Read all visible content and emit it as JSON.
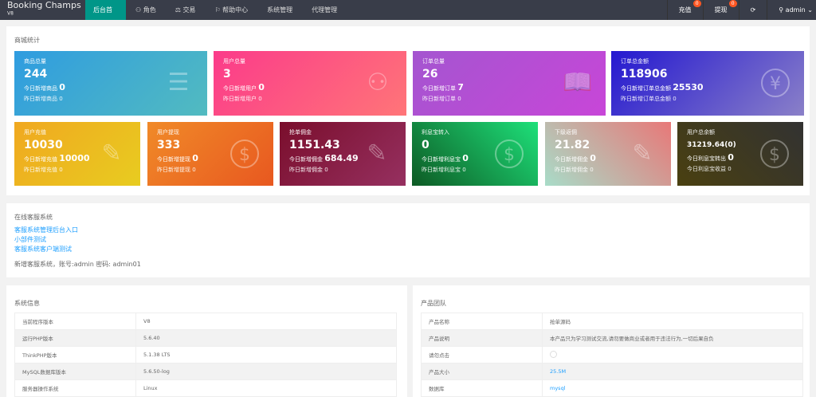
{
  "header": {
    "brand": "Booking Champs",
    "version": "V8",
    "nav": [
      "后台首页",
      "角色",
      "交易",
      "帮助中心",
      "系统管理",
      "代理管理"
    ],
    "right": {
      "recharge": "充值",
      "recharge_badge": "0",
      "withdraw": "提现",
      "withdraw_badge": "0",
      "user": "admin"
    }
  },
  "stats": {
    "title": "商城统计",
    "row1": [
      {
        "title": "商品总量",
        "value": "244",
        "today_label": "今日新增商品",
        "today": "0",
        "yesterday_label": "昨日新增商品",
        "yesterday": "0",
        "icon": "layers-icon"
      },
      {
        "title": "用户总量",
        "value": "3",
        "today_label": "今日新增用户",
        "today": "0",
        "yesterday_label": "昨日新增用户",
        "yesterday": "0",
        "icon": "users-icon"
      },
      {
        "title": "订单总量",
        "value": "26",
        "today_label": "今日新增订单",
        "today": "7",
        "yesterday_label": "昨日新增订单",
        "yesterday": "0",
        "icon": "book-icon"
      },
      {
        "title": "订单总金额",
        "value": "118906",
        "today_label": "今日新增订单总金额",
        "today": "25530",
        "yesterday_label": "昨日新增订单总金额",
        "yesterday": "0",
        "icon": "yen-icon"
      }
    ],
    "row2": [
      {
        "title": "用户充值",
        "value": "10030",
        "today_label": "今日新增充值",
        "today": "10000",
        "yesterday_label": "昨日新增充值",
        "yesterday": "0",
        "icon": "edit-icon"
      },
      {
        "title": "用户提现",
        "value": "333",
        "today_label": "今日新增提现",
        "today": "0",
        "yesterday_label": "昨日新增提现",
        "yesterday": "0",
        "icon": "dollar-icon"
      },
      {
        "title": "抢单佣金",
        "value": "1151.43",
        "today_label": "今日新增佣金",
        "today": "684.49",
        "yesterday_label": "昨日新增佣金",
        "yesterday": "0",
        "icon": "edit-icon"
      },
      {
        "title": "利息宝转入",
        "value": "0",
        "today_label": "今日新增利息宝",
        "today": "0",
        "yesterday_label": "昨日新增利息宝",
        "yesterday": "0",
        "icon": "dollar-icon"
      },
      {
        "title": "下级返佣",
        "value": "21.82",
        "today_label": "今日新增佣金",
        "today": "0",
        "yesterday_label": "昨日新增佣金",
        "yesterday": "0",
        "icon": "edit-icon"
      },
      {
        "title": "用户总余额",
        "value": "31219.64(0)",
        "today_label": "今日利息宝转出",
        "today": "0",
        "yesterday_label": "今日利息宝收益",
        "yesterday": "0",
        "icon": "dollar-icon"
      }
    ]
  },
  "service": {
    "title": "在线客服系统",
    "links": [
      "客服系统管理后台入口",
      "小部件测试",
      "客服系统客户端测试"
    ],
    "note": "新增客服系统，账号:admin 密码: admin01"
  },
  "sysinfo": {
    "title": "系统信息",
    "rows": [
      [
        "当前程序版本",
        "V8"
      ],
      [
        "运行PHP版本",
        "5.6.40"
      ],
      [
        "ThinkPHP版本",
        "5.1.38 LTS"
      ],
      [
        "MySQL数据库版本",
        "5.6.50-log"
      ],
      [
        "服务器操作系统",
        "Linux"
      ]
    ]
  },
  "team": {
    "title": "产品团队",
    "rows": [
      [
        "产品名称",
        "抢单源码"
      ],
      [
        "产品说明",
        "本产品只为学习测试交流,请勿要做商业或者用于违法行为,一切后果自负"
      ],
      [
        "请勿点击",
        ""
      ],
      [
        "产品大小",
        "25.5M"
      ],
      [
        "数据库",
        "mysql"
      ]
    ]
  }
}
